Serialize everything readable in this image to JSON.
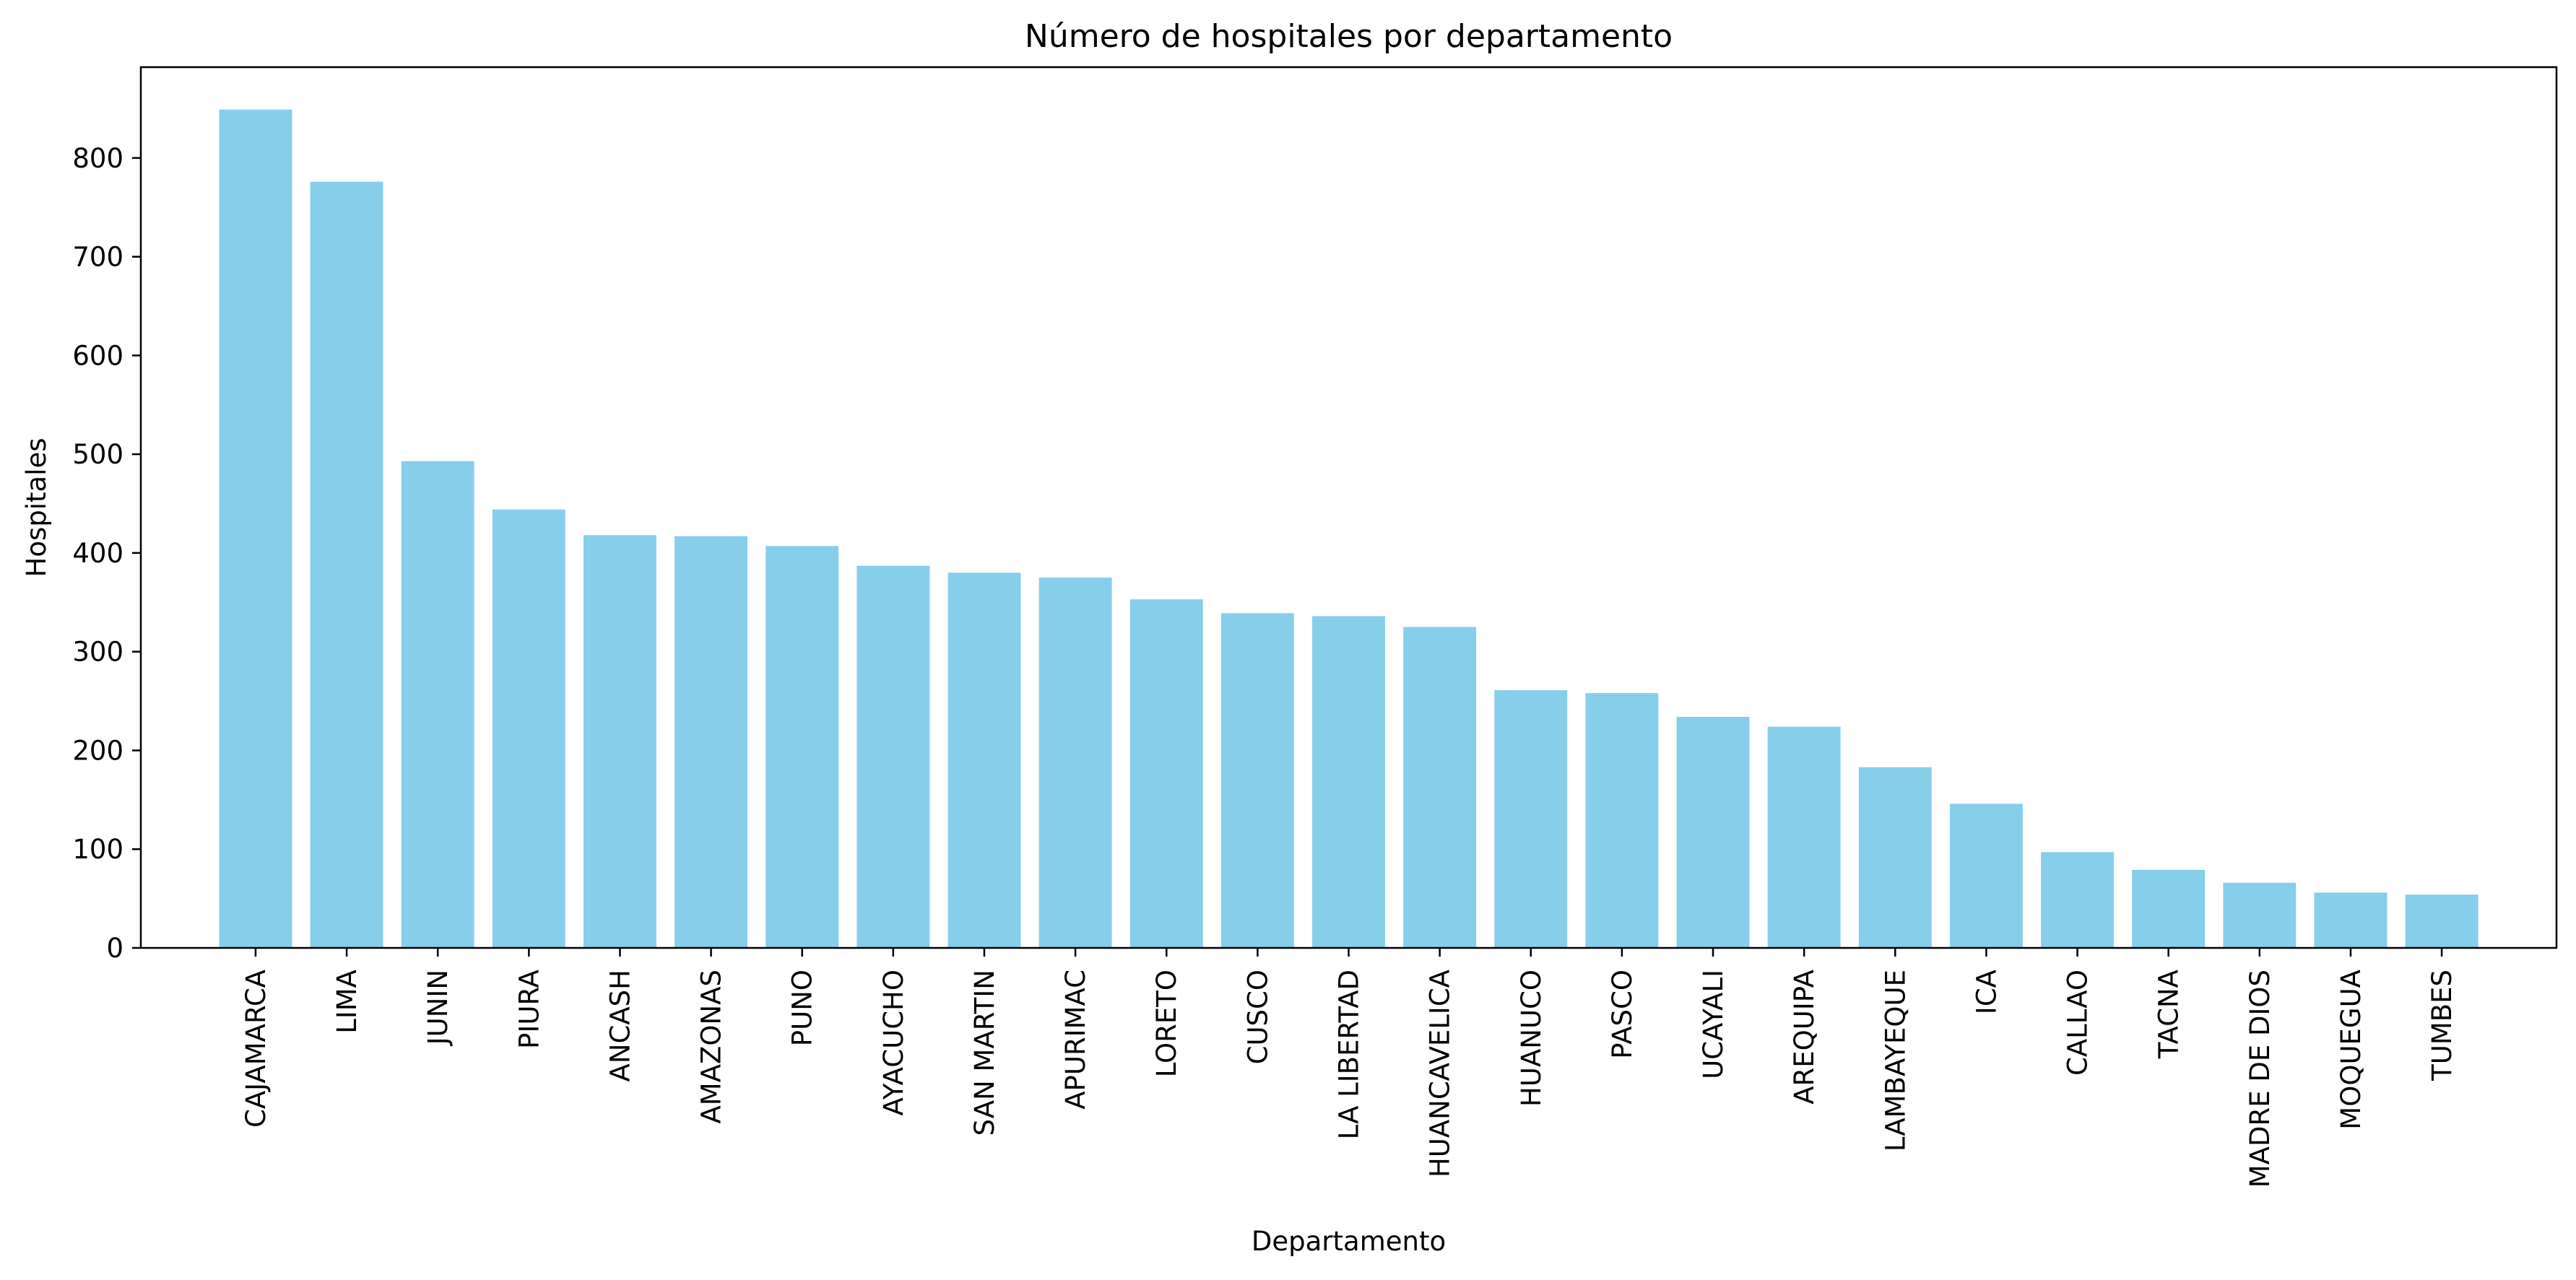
{
  "chart_data": {
    "type": "bar",
    "title": "Número de hospitales por departamento",
    "xlabel": "Departamento",
    "ylabel": "Hospitales",
    "ylim": [
      0,
      892
    ],
    "yticks": [
      0,
      100,
      200,
      300,
      400,
      500,
      600,
      700,
      800
    ],
    "grid": false,
    "legend": "none",
    "bar_color": "#87CEEB",
    "categories": [
      "CAJAMARCA",
      "LIMA",
      "JUNIN",
      "PIURA",
      "ANCASH",
      "AMAZONAS",
      "PUNO",
      "AYACUCHO",
      "SAN MARTIN",
      "APURIMAC",
      "LORETO",
      "CUSCO",
      "LA LIBERTAD",
      "HUANCAVELICA",
      "HUANUCO",
      "PASCO",
      "UCAYALI",
      "AREQUIPA",
      "LAMBAYEQUE",
      "ICA",
      "CALLAO",
      "TACNA",
      "MADRE DE DIOS",
      "MOQUEGUA",
      "TUMBES"
    ],
    "values": [
      849,
      776,
      493,
      444,
      418,
      417,
      407,
      387,
      380,
      375,
      353,
      339,
      336,
      325,
      261,
      258,
      234,
      224,
      183,
      146,
      97,
      79,
      66,
      56,
      54
    ]
  }
}
